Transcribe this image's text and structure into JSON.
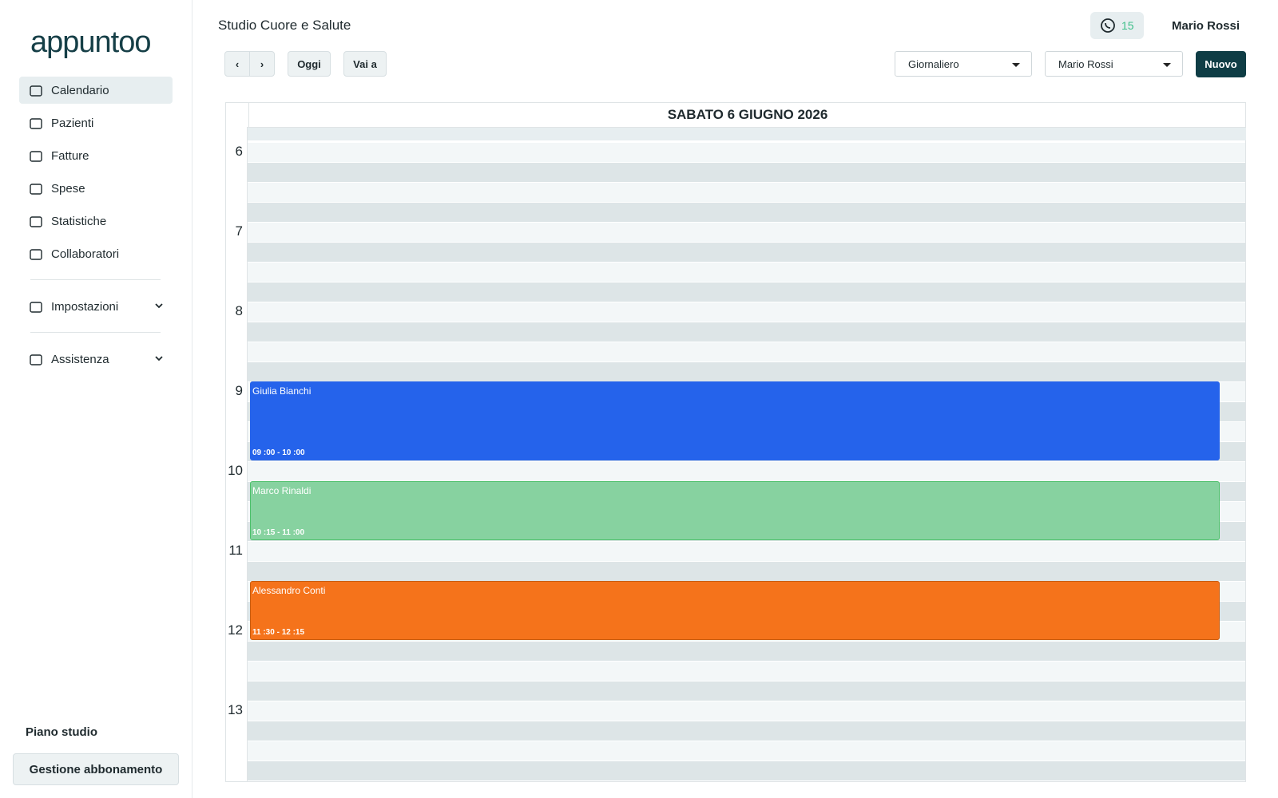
{
  "sidebar": {
    "logo": "appuntoo",
    "nav": [
      "Calendario",
      "Pazienti",
      "Fatture",
      "Spese",
      "Statistiche",
      "Collaboratori"
    ],
    "sections": [
      "Impostazioni",
      "Assistenza"
    ],
    "plan_label": "Piano studio",
    "plan_button": "Gestione abbonamento"
  },
  "header": {
    "title": "Studio Cuore e Salute",
    "whatsapp_count": "15",
    "user": "Mario Rossi"
  },
  "toolbar": {
    "today": "Oggi",
    "goto": "Vai a",
    "view": "Giornaliero",
    "staff": "Mario Rossi",
    "new": "Nuovo"
  },
  "calendar": {
    "date": "SABATO 6 GIUGNO 2026",
    "hours": [
      6,
      7,
      8,
      9,
      10,
      11,
      12,
      13
    ],
    "events": [
      {
        "name": "Giulia Bianchi",
        "time": "09 :00 - 10 :00"
      },
      {
        "name": "Marco Rinaldi",
        "time": "10 :15 - 11 :00"
      },
      {
        "name": "Alessandro Conti",
        "time": "11 :30 - 12 :15"
      }
    ]
  }
}
